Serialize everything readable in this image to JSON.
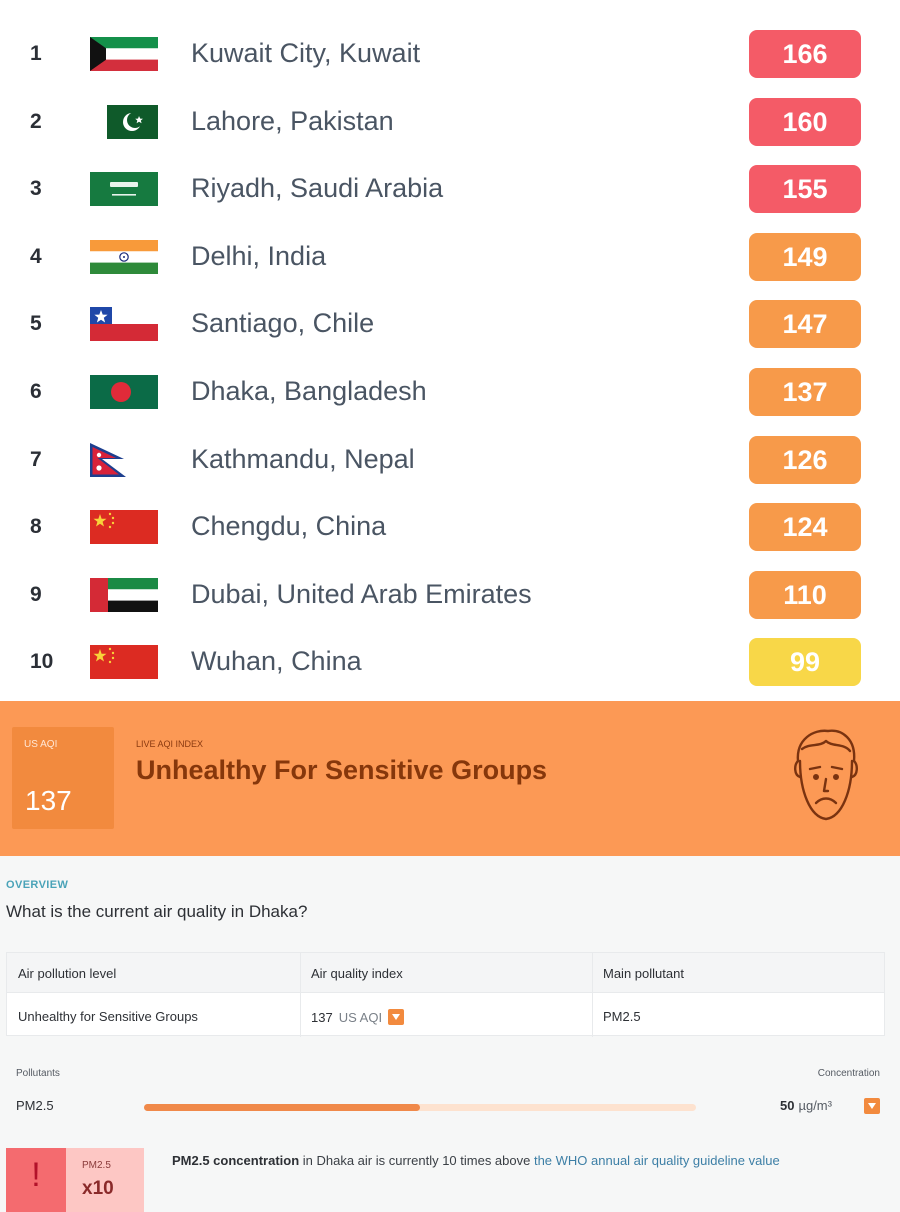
{
  "colors": {
    "red": "#f45b67",
    "orange": "#f79a4a",
    "yellow": "#f8d748",
    "banner": "#fc9955",
    "banner_box": "#f28a3e"
  },
  "ranking": [
    {
      "rank": "1",
      "city": "Kuwait City, Kuwait",
      "aqi": "166",
      "level": "red",
      "flag": "kuwait-flag"
    },
    {
      "rank": "2",
      "city": "Lahore, Pakistan",
      "aqi": "160",
      "level": "red",
      "flag": "pakistan-flag"
    },
    {
      "rank": "3",
      "city": "Riyadh, Saudi Arabia",
      "aqi": "155",
      "level": "red",
      "flag": "saudi-arabia-flag"
    },
    {
      "rank": "4",
      "city": "Delhi, India",
      "aqi": "149",
      "level": "orange",
      "flag": "india-flag"
    },
    {
      "rank": "5",
      "city": "Santiago, Chile",
      "aqi": "147",
      "level": "orange",
      "flag": "chile-flag"
    },
    {
      "rank": "6",
      "city": "Dhaka, Bangladesh",
      "aqi": "137",
      "level": "orange",
      "flag": "bangladesh-flag"
    },
    {
      "rank": "7",
      "city": "Kathmandu, Nepal",
      "aqi": "126",
      "level": "orange",
      "flag": "nepal-flag"
    },
    {
      "rank": "8",
      "city": "Chengdu, China",
      "aqi": "124",
      "level": "orange",
      "flag": "china-flag"
    },
    {
      "rank": "9",
      "city": "Dubai, United Arab Emirates",
      "aqi": "110",
      "level": "orange",
      "flag": "uae-flag"
    },
    {
      "rank": "10",
      "city": "Wuhan, China",
      "aqi": "99",
      "level": "yellow",
      "flag": "china-flag"
    }
  ],
  "banner": {
    "box_label": "US AQI",
    "aqi_value": "137",
    "live_label": "LIVE AQI INDEX",
    "status": "Unhealthy For Sensitive Groups",
    "face_icon": "sad-face-icon"
  },
  "overview": {
    "section_label": "OVERVIEW",
    "question": "What is the current air quality in Dhaka?",
    "table": {
      "headers": [
        "Air pollution level",
        "Air quality index",
        "Main pollutant"
      ],
      "level": "Unhealthy for Sensitive Groups",
      "aqi_number": "137",
      "aqi_unit": "US AQI",
      "pollutant": "PM2.5"
    },
    "pollutants_label": "Pollutants",
    "concentration_label": "Concentration",
    "pollutant_name": "PM2.5",
    "concentration_value": "50",
    "concentration_unit": "µg/m³",
    "concentration_fraction": 0.5,
    "alert": {
      "icon": "exclamation-icon",
      "mark": "!",
      "pollutant": "PM2.5",
      "multiplier": "x10",
      "text_bold": "PM2.5 concentration",
      "text_mid": " in Dhaka air is currently 10 times above ",
      "text_link": "the WHO annual air quality guideline value"
    }
  }
}
